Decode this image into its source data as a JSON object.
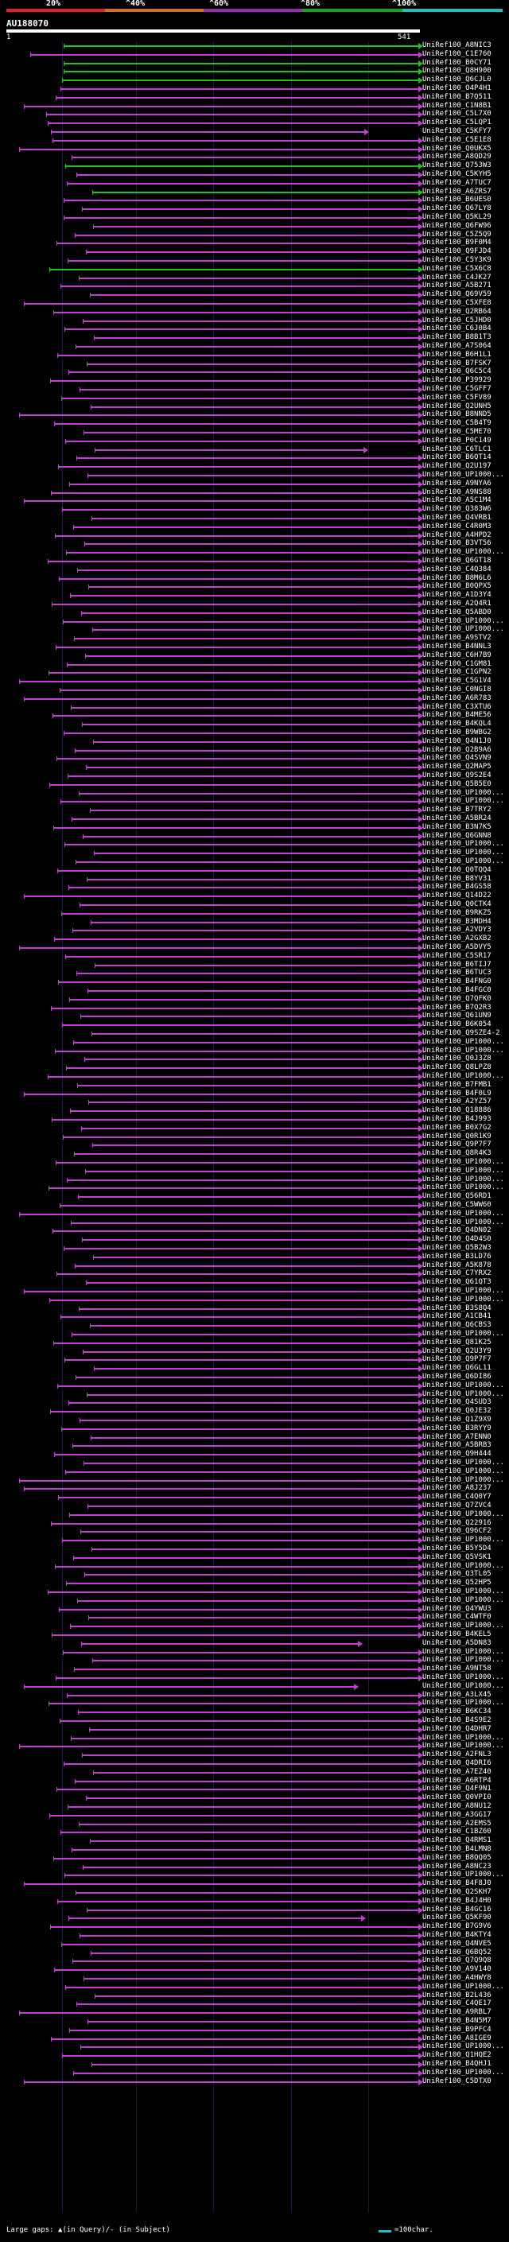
{
  "scale": {
    "labels": [
      "20%",
      "^40%",
      "^60%",
      "^80%",
      "^100%"
    ],
    "colors": [
      "#e0202a",
      "#d07020",
      "#9030b0",
      "#20a020",
      "#1dc0c0"
    ]
  },
  "query": {
    "title": "AU188070",
    "start": "1",
    "end": "541"
  },
  "hit_colors": {
    "default": "#c040d0",
    "high": "#22c022"
  },
  "hits": [
    "UniRef100_A8NIC3",
    "UniRef100_C1E760",
    "UniRef100_B0CY71",
    "UniRef100_Q8H900",
    "UniRef100_Q6CJL0",
    "UniRef100_O4P4H1",
    "UniRef100_B7Q511",
    "UniRef100_C1N8B1",
    "UniRef100_C5L7X0",
    "UniRef100_C5LQP1",
    "UniRef100_C5KFY7",
    "UniRef100_C5E1E8",
    "UniRef100_Q0UKX5",
    "UniRef100_A8QD29",
    "UniRef100_Q753W3",
    "UniRef100_C5KYH5",
    "UniRef100_A7TUC7",
    "UniRef100_A6ZRS7",
    "UniRef100_B6UES0",
    "UniRef100_Q67LY8",
    "UniRef100_Q5KL29",
    "UniRef100_Q6FW96",
    "UniRef100_C5Z5Q9",
    "UniRef100_B9F0M4",
    "UniRef100_Q9FJD4",
    "UniRef100_C5Y3K9",
    "UniRef100_C5X6C8",
    "UniRef100_C4JK27",
    "UniRef100_A5B271",
    "UniRef100_Q69V59",
    "UniRef100_C5XFE8",
    "UniRef100_Q2RB64",
    "UniRef100_C5JHD0",
    "UniRef100_C6J0B4",
    "UniRef100_B8B1T3",
    "UniRef100_A7S064",
    "UniRef100_B6H1L1",
    "UniRef100_B7FSK7",
    "UniRef100_Q6C5C4",
    "UniRef100_P39929",
    "UniRef100_C5GFF7",
    "UniRef100_C5FV89",
    "UniRef100_Q2UNH5",
    "UniRef100_B8NND5",
    "UniRef100_C5B4T9",
    "UniRef100_C5ME70",
    "UniRef100_P0C149",
    "UniRef100_C6TLC1",
    "UniRef100_B6QT14",
    "UniRef100_Q2U197",
    "UniRef100_UP1000...",
    "UniRef100_A9NYA6",
    "UniRef100_A9NS88",
    "UniRef100_A5C1M4",
    "UniRef100_Q383W6",
    "UniRef100_Q4VRB1",
    "UniRef100_C4R0M3",
    "UniRef100_A4HPD2",
    "UniRef100_B3VT56",
    "UniRef100_UP1000...",
    "UniRef100_Q6GT18",
    "UniRef100_C4Q384",
    "UniRef100_B8M6L6",
    "UniRef100_B0QPX5",
    "UniRef100_A1D3Y4",
    "UniRef100_A2Q4R1",
    "UniRef100_Q5ABD0",
    "UniRef100_UP1000...",
    "UniRef100_UP1000...",
    "UniRef100_A9STV2",
    "UniRef100_B4NNL3",
    "UniRef100_C6H7B9",
    "UniRef100_C1GM81",
    "UniRef100_C1GPN2",
    "UniRef100_C5G1V4",
    "UniRef100_C0NGI8",
    "UniRef100_A6R783",
    "UniRef100_C3XTU6",
    "UniRef100_B4ME56",
    "UniRef100_B4KQL4",
    "UniRef100_B9WBG2",
    "UniRef100_Q4N1J0",
    "UniRef100_Q2B9A6",
    "UniRef100_Q4SVN9",
    "UniRef100_Q2MAP5",
    "UniRef100_Q9S2E4",
    "UniRef100_Q5B5E0",
    "UniRef100_UP1000...",
    "UniRef100_UP1000...",
    "UniRef100_B7TRY2",
    "UniRef100_A5BR24",
    "UniRef100_B3N7K5",
    "UniRef100_Q6GNN8",
    "UniRef100_UP1000...",
    "UniRef100_UP1000...",
    "UniRef100_UP1000...",
    "UniRef100_Q0TQQ4",
    "UniRef100_B8YV31",
    "UniRef100_B4GS58",
    "UniRef100_Q14D22",
    "UniRef100_Q0CTK4",
    "UniRef100_B9RKZ5",
    "UniRef100_B3MDH4",
    "UniRef100_A2VDY3",
    "UniRef100_A2GXB2",
    "UniRef100_A5DVY5",
    "UniRef100_C5SR17",
    "UniRef100_B6TIJ7",
    "UniRef100_B6TUC3",
    "UniRef100_B4FNG0",
    "UniRef100_B4FGC0",
    "UniRef100_Q7QFK0",
    "UniRef100_B7Q2R3",
    "UniRef100_Q61UN9",
    "UniRef100_B6K054",
    "UniRef100_Q9SZE4-2",
    "UniRef100_UP1000...",
    "UniRef100_UP1000...",
    "UniRef100_Q0J3Z8",
    "UniRef100_Q8LPZ8",
    "UniRef100_UP1000...",
    "UniRef100_B7FMB1",
    "UniRef100_B4F0L9",
    "UniRef100_A2YZ57",
    "UniRef100_Q18886",
    "UniRef100_B4J993",
    "UniRef100_B0X7G2",
    "UniRef100_Q0R1K9",
    "UniRef100_Q9P7F7",
    "UniRef100_Q8R4K3",
    "UniRef100_UP1000...",
    "UniRef100_UP1000...",
    "UniRef100_UP1000...",
    "UniRef100_UP1000...",
    "UniRef100_Q56RD1",
    "UniRef100_C5WW60",
    "UniRef100_UP1000...",
    "UniRef100_UP1000...",
    "UniRef100_Q4DN02",
    "UniRef100_Q4D4S0",
    "UniRef100_Q5B2W3",
    "UniRef100_B3LD76",
    "UniRef100_A5K878",
    "UniRef100_C7YRX2",
    "UniRef100_Q61QT3",
    "UniRef100_UP1000...",
    "UniRef100_UP1000...",
    "UniRef100_B3S8Q4",
    "UniRef100_A1CB41",
    "UniRef100_Q6CBS3",
    "UniRef100_UP1000...",
    "UniRef100_Q81K25",
    "UniRef100_Q2U3Y9",
    "UniRef100_Q9P7F7",
    "UniRef100_Q6GL11",
    "UniRef100_Q6DI86",
    "UniRef100_UP1000...",
    "UniRef100_UP1000...",
    "UniRef100_Q4SUD3",
    "UniRef100_Q0JE32",
    "UniRef100_Q1Z9X9",
    "UniRef100_B3RYY9",
    "UniRef100_A7ENN0",
    "UniRef100_A5BRB3",
    "UniRef100_Q9H444",
    "UniRef100_UP1000...",
    "UniRef100_UP1000...",
    "UniRef100_UP1000...",
    "UniRef100_A8J237",
    "UniRef100_C4Q0Y7",
    "UniRef100_Q7ZVC4",
    "UniRef100_UP1000...",
    "UniRef100_Q22916",
    "UniRef100_Q96CF2",
    "UniRef100_UP1000...",
    "UniRef100_B5Y5D4",
    "UniRef100_Q5VSK1",
    "UniRef100_UP1000...",
    "UniRef100_Q3TL05",
    "UniRef100_Q52HP5",
    "UniRef100_UP1000...",
    "UniRef100_UP1000...",
    "UniRef100_Q4YWU3",
    "UniRef100_C4WTF0",
    "UniRef100_UP1000...",
    "UniRef100_B4KEL5",
    "UniRef100_A5DN83",
    "UniRef100_UP1000...",
    "UniRef100_UP1000...",
    "UniRef100_A9NT58",
    "UniRef100_UP1000...",
    "UniRef100_UP1000...",
    "UniRef100_A3LX45",
    "UniRef100_UP1000...",
    "UniRef100_B6KC34",
    "UniRef100_B4S9E2",
    "UniRef100_Q4DHR7",
    "UniRef100_UP1000...",
    "UniRef100_UP1000...",
    "UniRef100_A2FNL3",
    "UniRef100_Q4DRI6",
    "UniRef100_A7EZ40",
    "UniRef100_A6RTP4",
    "UniRef100_Q4F9N1",
    "UniRef100_Q0VPI0",
    "UniRef100_A8NU12",
    "UniRef100_A3GG17",
    "UniRef100_A2EMS5",
    "UniRef100_C1BZ60",
    "UniRef100_Q4RMS1",
    "UniRef100_B4LMN8",
    "UniRef100_B8QQ05",
    "UniRef100_A8NC23",
    "UniRef100_UP1000...",
    "UniRef100_B4F8J0",
    "UniRef100_Q2SKH7",
    "UniRef100_B4J4H0",
    "UniRef100_B4GC16",
    "UniRef100_Q5KF90",
    "UniRef100_B7G9V6",
    "UniRef100_B4KTY4",
    "UniRef100_Q4NVE5",
    "UniRef100_Q6BQ52",
    "UniRef100_Q7Q9Q8",
    "UniRef100_A9V140",
    "UniRef100_A4HWY8",
    "UniRef100_UP1000...",
    "UniRef100_B2L436",
    "UniRef100_C4QE17",
    "UniRef100_A9RBL7",
    "UniRef100_B4N5M7",
    "UniRef100_B9PFC4",
    "UniRef100_A8IGE9",
    "UniRef100_UP1000...",
    "UniRef100_Q1HQE2",
    "UniRef100_B4QHJ1",
    "UniRef100_UP1000...",
    "UniRef100_C5DTX0"
  ],
  "footer": {
    "gaps_label": "Large gaps: ▲(in Query)/- (in Subject)",
    "scale_label": "=100char."
  }
}
